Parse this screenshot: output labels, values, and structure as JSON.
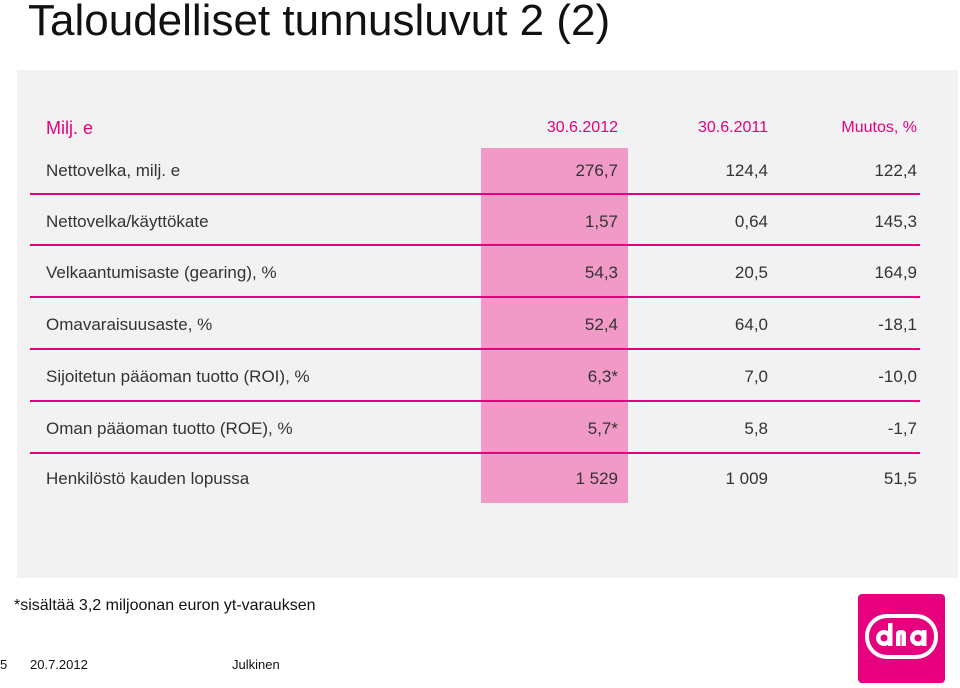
{
  "title": "Taloudelliset tunnusluvut 2 (2)",
  "table": {
    "header": {
      "label": "Milj. e",
      "c1": "30.6.2012",
      "c2": "30.6.2011",
      "c3": "Muutos, %"
    },
    "rows": [
      {
        "label": "Nettovelka, milj. e",
        "c1": "276,7",
        "c2": "124,4",
        "c3": "122,4"
      },
      {
        "label": "Nettovelka/käyttökate",
        "c1": "1,57",
        "c2": "0,64",
        "c3": "145,3"
      },
      {
        "label": "Velkaantumisaste (gearing), %",
        "c1": "54,3",
        "c2": "20,5",
        "c3": "164,9"
      },
      {
        "label": "Omavaraisuusaste, %",
        "c1": "52,4",
        "c2": "64,0",
        "c3": "-18,1"
      },
      {
        "label": "Sijoitetun pääoman tuotto (ROI), %",
        "c1": "6,3*",
        "c2": "7,0",
        "c3": "-10,0"
      },
      {
        "label": "Oman pääoman tuotto (ROE), %",
        "c1": "5,7*",
        "c2": "5,8",
        "c3": "-1,7"
      },
      {
        "label": "Henkilöstö kauden lopussa",
        "c1": "1 529",
        "c2": "1 009",
        "c3": "51,5"
      }
    ]
  },
  "footnote": "*sisältää 3,2 miljoonan euron yt-varauksen",
  "footer": {
    "page_number": "5",
    "date": "20.7.2012",
    "classification": "Julkinen"
  },
  "logo": {
    "name": "dna-logo",
    "color": "#e6007e"
  },
  "colors": {
    "accent": "#e6007e",
    "highlight": "#f29ac7",
    "panel": "#f2f2f2"
  }
}
